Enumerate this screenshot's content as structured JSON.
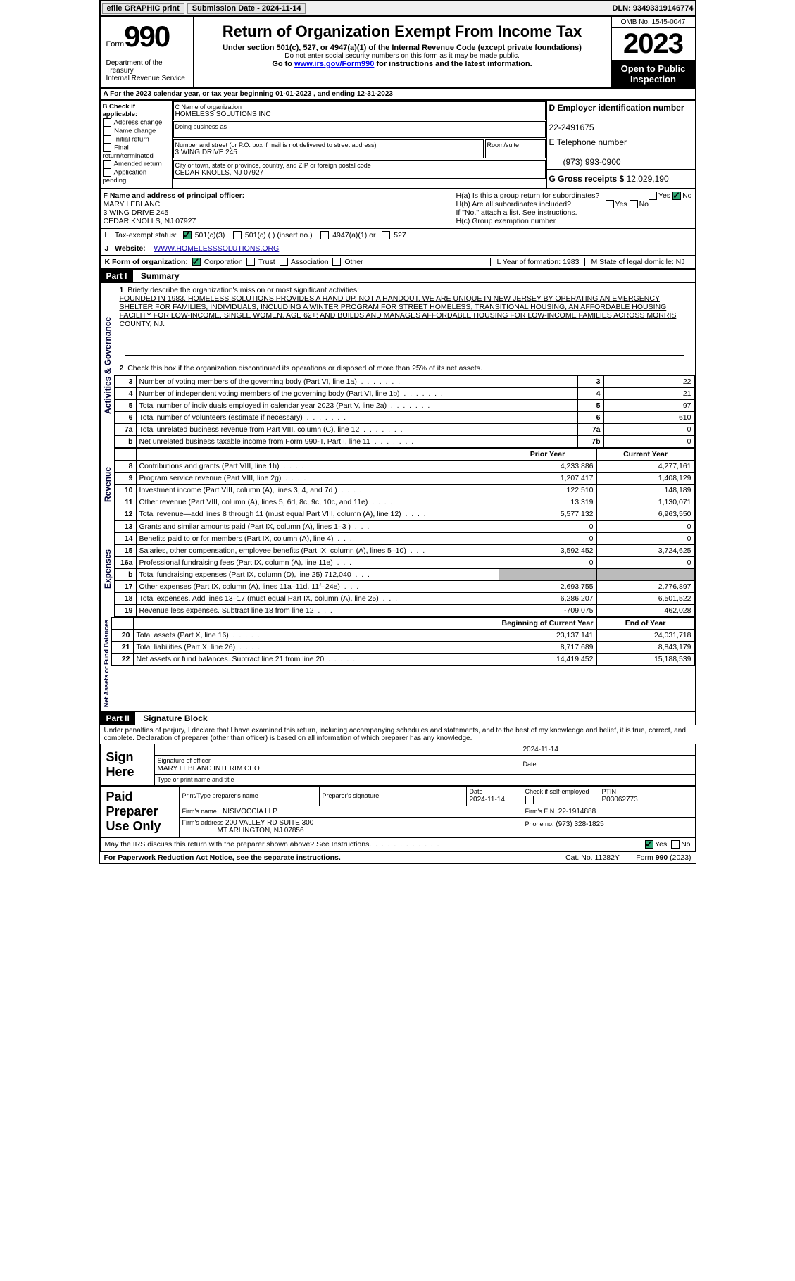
{
  "topbar": {
    "efile": "efile GRAPHIC print",
    "submission_label": "Submission Date - 2024-11-14",
    "dln": "DLN: 93493319146774"
  },
  "header": {
    "form_word": "Form",
    "form_no": "990",
    "dept": "Department of the Treasury\nInternal Revenue Service",
    "title": "Return of Organization Exempt From Income Tax",
    "sub1": "Under section 501(c), 527, or 4947(a)(1) of the Internal Revenue Code (except private foundations)",
    "sub2": "Do not enter social security numbers on this form as it may be made public.",
    "sub3_pre": "Go to ",
    "sub3_link": "www.irs.gov/Form990",
    "sub3_post": " for instructions and the latest information.",
    "omb": "OMB No. 1545-0047",
    "year": "2023",
    "open_pub": "Open to Public Inspection"
  },
  "calendar": {
    "text": "A For the 2023 calendar year, or tax year beginning 01-01-2023   , and ending 12-31-2023"
  },
  "B": {
    "label": "B Check if applicable:",
    "items": [
      "Address change",
      "Name change",
      "Initial return",
      "Final return/terminated",
      "Amended return",
      "Application pending"
    ]
  },
  "C": {
    "name_label": "C Name of organization",
    "name": "HOMELESS SOLUTIONS INC",
    "dba_label": "Doing business as",
    "street_label": "Number and street (or P.O. box if mail is not delivered to street address)",
    "room_label": "Room/suite",
    "street": "3 WING DRIVE 245",
    "city_label": "City or town, state or province, country, and ZIP or foreign postal code",
    "city": "CEDAR KNOLLS, NJ  07927"
  },
  "D": {
    "label": "D Employer identification number",
    "value": "22-2491675",
    "tel_label": "E Telephone number",
    "tel": "(973) 993-0900",
    "gross_label": "G Gross receipts $",
    "gross": "12,029,190"
  },
  "F": {
    "label": "F Name and address of principal officer:",
    "name": "MARY LEBLANC",
    "street": "3 WING DRIVE 245",
    "city": "CEDAR KNOLLS, NJ  07927"
  },
  "H": {
    "a": "H(a)  Is this a group return for subordinates?",
    "b": "H(b)  Are all subordinates included?",
    "b2": "If \"No,\" attach a list. See instructions.",
    "c": "H(c)  Group exemption number",
    "yes": "Yes",
    "no": "No"
  },
  "I": {
    "label": "Tax-exempt status:",
    "opts": [
      "501(c)(3)",
      "501(c) (  ) (insert no.)",
      "4947(a)(1) or",
      "527"
    ]
  },
  "J": {
    "label": "Website:",
    "value": "WWW.HOMELESSSOLUTIONS.ORG"
  },
  "K": {
    "label": "K Form of organization:",
    "opts": [
      "Corporation",
      "Trust",
      "Association",
      "Other"
    ],
    "L": "L Year of formation: 1983",
    "M": "M State of legal domicile: NJ"
  },
  "part1": {
    "bar": "Part I",
    "title": "Summary",
    "mission_label": "Briefly describe the organization's mission or most significant activities:",
    "mission": "FOUNDED IN 1983, HOMELESS SOLUTIONS PROVIDES A HAND UP, NOT A HANDOUT. WE ARE UNIQUE IN NEW JERSEY BY OPERATING AN EMERGENCY SHELTER FOR FAMILIES, INDIVIDUALS, INCLUDING A WINTER PROGRAM FOR STREET HOMELESS, TRANSITIONAL HOUSING, AN AFFORDABLE HOUSING FACILITY FOR LOW-INCOME, SINGLE WOMEN, AGE 62+; AND BUILDS AND MANAGES AFFORDABLE HOUSING FOR LOW-INCOME FAMILIES ACROSS MORRIS COUNTY, NJ.",
    "line2": "Check this box      if the organization discontinued its operations or disposed of more than 25% of its net assets."
  },
  "activities": {
    "label": "Activities & Governance",
    "rows": [
      {
        "n": "3",
        "desc": "Number of voting members of the governing body (Part VI, line 1a)",
        "box": "3",
        "val": "22"
      },
      {
        "n": "4",
        "desc": "Number of independent voting members of the governing body (Part VI, line 1b)",
        "box": "4",
        "val": "21"
      },
      {
        "n": "5",
        "desc": "Total number of individuals employed in calendar year 2023 (Part V, line 2a)",
        "box": "5",
        "val": "97"
      },
      {
        "n": "6",
        "desc": "Total number of volunteers (estimate if necessary)",
        "box": "6",
        "val": "610"
      },
      {
        "n": "7a",
        "desc": "Total unrelated business revenue from Part VIII, column (C), line 12",
        "box": "7a",
        "val": "0"
      },
      {
        "n": "b",
        "desc": "Net unrelated business taxable income from Form 990-T, Part I, line 11",
        "box": "7b",
        "val": "0"
      }
    ]
  },
  "revenue": {
    "label": "Revenue",
    "prior_h": "Prior Year",
    "curr_h": "Current Year",
    "rows": [
      {
        "n": "8",
        "desc": "Contributions and grants (Part VIII, line 1h)",
        "p": "4,233,886",
        "c": "4,277,161"
      },
      {
        "n": "9",
        "desc": "Program service revenue (Part VIII, line 2g)",
        "p": "1,207,417",
        "c": "1,408,129"
      },
      {
        "n": "10",
        "desc": "Investment income (Part VIII, column (A), lines 3, 4, and 7d )",
        "p": "122,510",
        "c": "148,189"
      },
      {
        "n": "11",
        "desc": "Other revenue (Part VIII, column (A), lines 5, 6d, 8c, 9c, 10c, and 11e)",
        "p": "13,319",
        "c": "1,130,071"
      },
      {
        "n": "12",
        "desc": "Total revenue—add lines 8 through 11 (must equal Part VIII, column (A), line 12)",
        "p": "5,577,132",
        "c": "6,963,550"
      }
    ]
  },
  "expenses": {
    "label": "Expenses",
    "rows": [
      {
        "n": "13",
        "desc": "Grants and similar amounts paid (Part IX, column (A), lines 1–3 )",
        "p": "0",
        "c": "0"
      },
      {
        "n": "14",
        "desc": "Benefits paid to or for members (Part IX, column (A), line 4)",
        "p": "0",
        "c": "0"
      },
      {
        "n": "15",
        "desc": "Salaries, other compensation, employee benefits (Part IX, column (A), lines 5–10)",
        "p": "3,592,452",
        "c": "3,724,625"
      },
      {
        "n": "16a",
        "desc": "Professional fundraising fees (Part IX, column (A), line 11e)",
        "p": "0",
        "c": "0"
      },
      {
        "n": "b",
        "desc": "Total fundraising expenses (Part IX, column (D), line 25) 712,040",
        "p": "",
        "c": "",
        "shade": true
      },
      {
        "n": "17",
        "desc": "Other expenses (Part IX, column (A), lines 11a–11d, 11f–24e)",
        "p": "2,693,755",
        "c": "2,776,897"
      },
      {
        "n": "18",
        "desc": "Total expenses. Add lines 13–17 (must equal Part IX, column (A), line 25)",
        "p": "6,286,207",
        "c": "6,501,522"
      },
      {
        "n": "19",
        "desc": "Revenue less expenses. Subtract line 18 from line 12",
        "p": "-709,075",
        "c": "462,028"
      }
    ]
  },
  "net": {
    "label": "Net Assets or Fund Balances",
    "beg_h": "Beginning of Current Year",
    "end_h": "End of Year",
    "rows": [
      {
        "n": "20",
        "desc": "Total assets (Part X, line 16)",
        "p": "23,137,141",
        "c": "24,031,718"
      },
      {
        "n": "21",
        "desc": "Total liabilities (Part X, line 26)",
        "p": "8,717,689",
        "c": "8,843,179"
      },
      {
        "n": "22",
        "desc": "Net assets or fund balances. Subtract line 21 from line 20",
        "p": "14,419,452",
        "c": "15,188,539"
      }
    ]
  },
  "part2": {
    "bar": "Part II",
    "title": "Signature Block",
    "decl": "Under penalties of perjury, I declare that I have examined this return, including accompanying schedules and statements, and to the best of my knowledge and belief, it is true, correct, and complete. Declaration of preparer (other than officer) is based on all information of which preparer has any knowledge."
  },
  "sign": {
    "sign_here": "Sign Here",
    "sig_date": "2024-11-14",
    "sig_label": "Signature of officer",
    "sig_name": "MARY LEBLANC  INTERIM CEO",
    "sig_type": "Type or print name and title",
    "date_label": "Date",
    "paid": "Paid Preparer Use Only",
    "prep_name_h": "Print/Type preparer's name",
    "prep_sig_h": "Preparer's signature",
    "prep_date_h": "Date",
    "prep_date": "2024-11-14",
    "check_label": "Check         if self-employed",
    "ptin_label": "PTIN",
    "ptin": "P03062773",
    "firm_name_l": "Firm's name",
    "firm_name": "NISIVOCCIA LLP",
    "firm_ein_l": "Firm's EIN",
    "firm_ein": "22-1914888",
    "firm_addr_l": "Firm's address",
    "firm_addr": "200 VALLEY RD SUITE 300",
    "firm_addr2": "MT ARLINGTON, NJ  07856",
    "phone_l": "Phone no.",
    "phone": "(973) 328-1825",
    "discuss": "May the IRS discuss this return with the preparer shown above? See Instructions.",
    "yes": "Yes",
    "no": "No"
  },
  "footer": {
    "left": "For Paperwork Reduction Act Notice, see the separate instructions.",
    "mid": "Cat. No. 11282Y",
    "right": "Form 990 (2023)"
  }
}
